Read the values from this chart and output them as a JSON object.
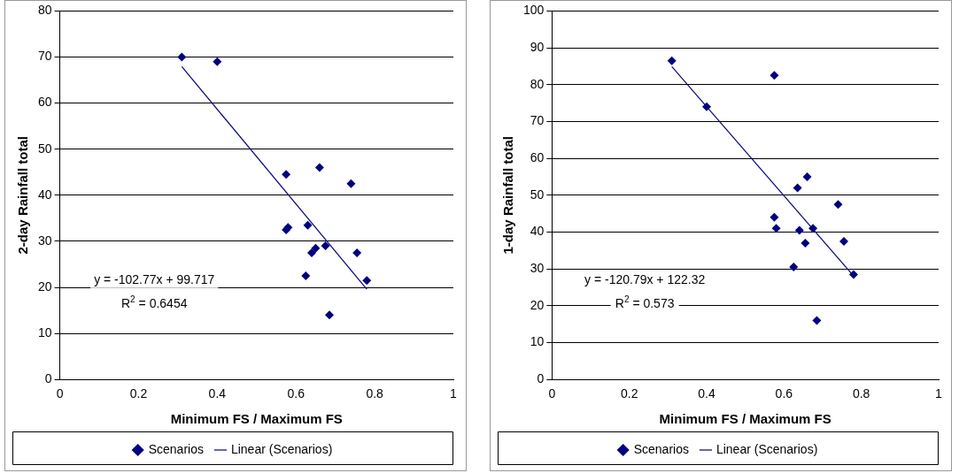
{
  "chart_data": [
    {
      "type": "scatter",
      "xlabel": "Minimum FS / Maximum FS",
      "ylabel": "2-day Rainfall total",
      "xlim": [
        0,
        1
      ],
      "xticks": [
        0,
        0.2,
        0.4,
        0.6,
        0.8,
        1
      ],
      "ylim": [
        0,
        80
      ],
      "yticks": [
        0,
        10,
        20,
        30,
        40,
        50,
        60,
        70,
        80
      ],
      "grid": "y",
      "legend": "bottom",
      "annotations": [
        "y = -102.77x + 99.717",
        "R$^{2}$ = 0.6454"
      ],
      "series": [
        {
          "name": "Scenarios",
          "color": "#000080",
          "marker": "diamond",
          "x": [
            0.31,
            0.4,
            0.575,
            0.66,
            0.74,
            0.575,
            0.58,
            0.63,
            0.64,
            0.65,
            0.675,
            0.755,
            0.625,
            0.78,
            0.685
          ],
          "values": [
            70,
            69,
            44.5,
            46,
            42.5,
            32.5,
            33,
            33.5,
            27.5,
            28.5,
            29,
            27.5,
            22.5,
            21.5,
            14
          ]
        },
        {
          "name": "Linear (Scenarios)",
          "type": "line",
          "color": "#000080",
          "marker": "none",
          "x": [
            0.31,
            0.78
          ],
          "values": [
            67.9,
            19.6
          ]
        }
      ]
    },
    {
      "type": "scatter",
      "xlabel": "Minimum FS / Maximum FS",
      "ylabel": "1-day Rainfall total",
      "xlim": [
        0,
        1
      ],
      "xticks": [
        0,
        0.2,
        0.4,
        0.6,
        0.8,
        1
      ],
      "ylim": [
        0,
        100
      ],
      "yticks": [
        0,
        10,
        20,
        30,
        40,
        50,
        60,
        70,
        80,
        90,
        100
      ],
      "grid": "y",
      "legend": "bottom",
      "annotations": [
        "y = -120.79x + 122.32",
        "R$^{2}$ = 0.573"
      ],
      "series": [
        {
          "name": "Scenarios",
          "color": "#000080",
          "marker": "diamond",
          "x": [
            0.31,
            0.4,
            0.575,
            0.575,
            0.58,
            0.635,
            0.66,
            0.74,
            0.64,
            0.675,
            0.655,
            0.755,
            0.625,
            0.78,
            0.685
          ],
          "values": [
            86.5,
            74,
            82.5,
            44,
            41,
            52,
            55,
            47.5,
            40.5,
            41,
            37,
            37.5,
            30.5,
            28.5,
            16
          ]
        },
        {
          "name": "Linear (Scenarios)",
          "type": "line",
          "color": "#000080",
          "marker": "none",
          "x": [
            0.31,
            0.78
          ],
          "values": [
            84.9,
            28.1
          ]
        }
      ]
    }
  ]
}
